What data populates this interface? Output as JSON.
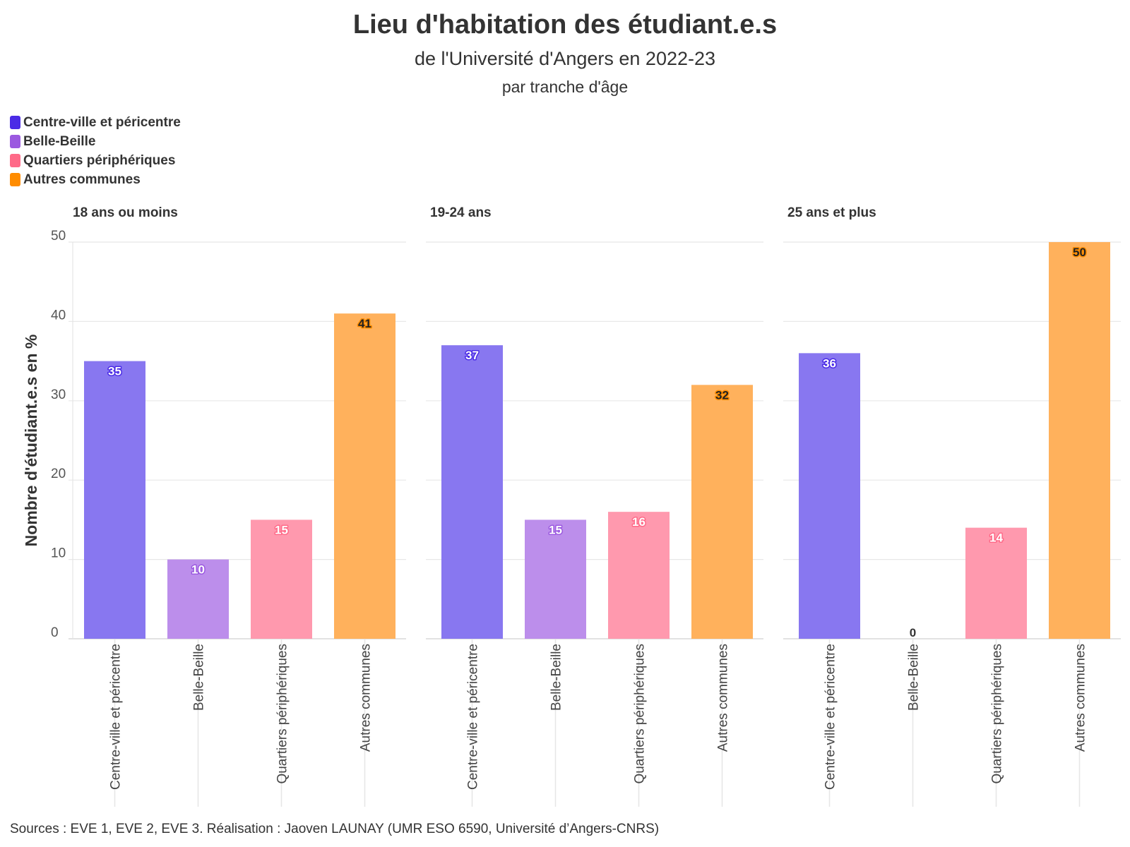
{
  "chart_data": {
    "type": "bar",
    "title": "Lieu d'habitation des étudiant.e.s",
    "subtitle": "de l'Université d'Angers en 2022-23",
    "subsubtitle": "par tranche d'âge",
    "ylabel": "Nombre d'étudiant.e.s en %",
    "ylim": [
      0,
      50
    ],
    "yticks": [
      0,
      10,
      20,
      30,
      40,
      50
    ],
    "categories": [
      "Centre-ville et péricentre",
      "Belle-Beille",
      "Quartiers périphériques",
      "Autres communes"
    ],
    "colors": [
      "#4A2BE6",
      "#9B59E0",
      "#FF6A88",
      "#FF8C00"
    ],
    "bar_fills": [
      "#8877F0",
      "#BC8EEB",
      "#FF99AE",
      "#FFB15C"
    ],
    "facets": [
      {
        "title": "18 ans ou moins",
        "values": [
          35,
          10,
          15,
          41
        ]
      },
      {
        "title": "19-24 ans",
        "values": [
          37,
          15,
          16,
          32
        ]
      },
      {
        "title": "25 ans et plus",
        "values": [
          36,
          0,
          14,
          50
        ]
      }
    ],
    "legend": [
      "Centre-ville et péricentre",
      "Belle-Beille",
      "Quartiers périphériques",
      "Autres communes"
    ]
  },
  "source": "Sources : EVE 1, EVE 2, EVE 3. Réalisation : Jaoven LAUNAY (UMR ESO 6590, Université d’Angers-CNRS)"
}
